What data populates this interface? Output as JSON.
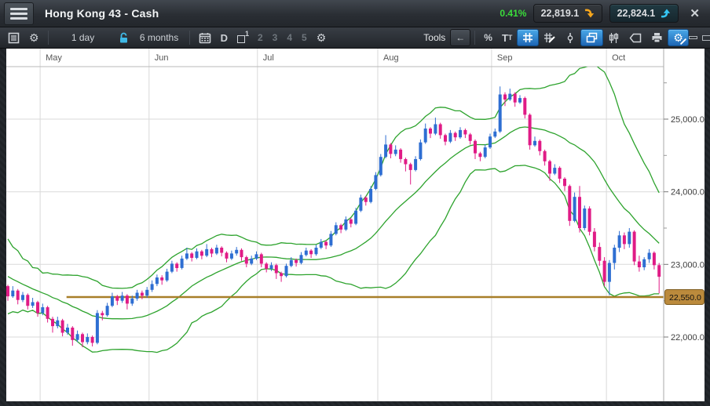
{
  "header": {
    "title": "Hong Kong 43 - Cash",
    "change_pct": "0.41%",
    "change_color": "#3bdc3b",
    "sell_price": "22,819.1",
    "buy_price": "22,824.1",
    "close_label": "✕"
  },
  "toolbar": {
    "period": "1 day",
    "range": "6 months",
    "chart_type": "D",
    "pane_current": "1",
    "pane_numbers": [
      "2",
      "3",
      "4",
      "5"
    ],
    "tools_label": "Tools",
    "back_arrow": "←",
    "percent_label": "%",
    "text_tool_big": "T",
    "text_tool_small": "T",
    "gear_glyph": "⚙"
  },
  "icons": [
    "hamburger-menu",
    "news-list",
    "gear",
    "lock",
    "calendar",
    "panes",
    "tools-back-arrow",
    "percent",
    "text-tool",
    "grid",
    "grid-draw",
    "drop-line",
    "overlap-windows",
    "candlestick-tool",
    "callout",
    "printer",
    "gear-draw",
    "size-small",
    "size-medium",
    "size-large",
    "chat-bubble",
    "sell-arrow-down",
    "buy-arrow-up",
    "close"
  ],
  "colors": {
    "up_candle": "#2e6ed2",
    "down_candle": "#e01b86",
    "band_green": "#2da32d",
    "support_gold": "#a87e28",
    "active_tool_blue": "#2b7fd0",
    "pct_green": "#3bdc3b",
    "sell_arrow_orange": "#f6a61d",
    "buy_arrow_cyan": "#35c6f4"
  },
  "chart_data": {
    "type": "candlestick",
    "title": "Hong Kong 43 - Cash, daily, 6 months, with Bollinger Bands (20, 2)",
    "x_axis": {
      "months": [
        {
          "label": "May",
          "day": 6.5
        },
        {
          "label": "Jun",
          "day": 28.4
        },
        {
          "label": "Jul",
          "day": 50.2
        },
        {
          "label": "Aug",
          "day": 74.4
        },
        {
          "label": "Sep",
          "day": 97.3
        },
        {
          "label": "Oct",
          "day": 120.4
        }
      ]
    },
    "y_axis": {
      "major_ticks": [
        25000,
        24000,
        23000,
        22000
      ],
      "major_tick_labels": [
        "25,000.0",
        "24,000.0",
        "23,000.0",
        "22,000.0"
      ],
      "minor_ticks": [
        25500,
        24500,
        23500,
        22500
      ],
      "ylim": [
        21115,
        25720
      ]
    },
    "support_line": {
      "price": 22550,
      "label": "22,550.0",
      "start_day": 11.8
    },
    "bollinger": {
      "window": 20,
      "mult": 2,
      "lead_in_closes": [
        23310,
        23420,
        23180,
        23300,
        23020,
        23150,
        22870,
        23010,
        22760,
        22900,
        22680,
        22820,
        22600,
        22740,
        22560,
        22690,
        22540,
        22650,
        22560,
        22680
      ]
    },
    "candles": [
      [
        22700,
        22720,
        22500,
        22560
      ],
      [
        22560,
        22700,
        22540,
        22640
      ],
      [
        22640,
        22660,
        22450,
        22510
      ],
      [
        22510,
        22620,
        22480,
        22580
      ],
      [
        22580,
        22600,
        22380,
        22430
      ],
      [
        22430,
        22540,
        22400,
        22480
      ],
      [
        22480,
        22500,
        22280,
        22330
      ],
      [
        22330,
        22460,
        22300,
        22410
      ],
      [
        22410,
        22430,
        22200,
        22250
      ],
      [
        22250,
        22280,
        22060,
        22150
      ],
      [
        22150,
        22280,
        22120,
        22230
      ],
      [
        22230,
        22250,
        22010,
        22060
      ],
      [
        22060,
        22180,
        22030,
        22130
      ],
      [
        22130,
        22150,
        21880,
        21960
      ],
      [
        21960,
        22090,
        21930,
        22040
      ],
      [
        22040,
        22060,
        21860,
        21930
      ],
      [
        21930,
        22050,
        21900,
        22000
      ],
      [
        22000,
        22020,
        21870,
        21920
      ],
      [
        21920,
        22370,
        21900,
        22330
      ],
      [
        22330,
        22360,
        22230,
        22300
      ],
      [
        22300,
        22470,
        22280,
        22430
      ],
      [
        22430,
        22610,
        22410,
        22560
      ],
      [
        22560,
        22580,
        22440,
        22500
      ],
      [
        22500,
        22620,
        22470,
        22570
      ],
      [
        22570,
        22590,
        22380,
        22460
      ],
      [
        22460,
        22570,
        22430,
        22530
      ],
      [
        22530,
        22650,
        22500,
        22610
      ],
      [
        22610,
        22640,
        22520,
        22570
      ],
      [
        22570,
        22690,
        22540,
        22650
      ],
      [
        22650,
        22780,
        22620,
        22730
      ],
      [
        22730,
        22860,
        22700,
        22820
      ],
      [
        22820,
        22850,
        22720,
        22780
      ],
      [
        22780,
        22940,
        22760,
        22900
      ],
      [
        22900,
        23050,
        22880,
        23010
      ],
      [
        23010,
        23030,
        22900,
        22950
      ],
      [
        22950,
        23120,
        22930,
        23080
      ],
      [
        23080,
        23230,
        23060,
        23150
      ],
      [
        23150,
        23170,
        23040,
        23090
      ],
      [
        23090,
        23220,
        23070,
        23180
      ],
      [
        23180,
        23200,
        23070,
        23120
      ],
      [
        23120,
        23280,
        23100,
        23210
      ],
      [
        23210,
        23230,
        23100,
        23150
      ],
      [
        23150,
        23270,
        23130,
        23230
      ],
      [
        23230,
        23250,
        23110,
        23160
      ],
      [
        23160,
        23180,
        23030,
        23080
      ],
      [
        23080,
        23190,
        23060,
        23150
      ],
      [
        23150,
        23240,
        23120,
        23200
      ],
      [
        23200,
        23220,
        23050,
        23100
      ],
      [
        23100,
        23120,
        22960,
        23010
      ],
      [
        23010,
        23120,
        22990,
        23080
      ],
      [
        23080,
        23180,
        23060,
        23140
      ],
      [
        23140,
        23160,
        22960,
        23010
      ],
      [
        23010,
        23030,
        22890,
        22940
      ],
      [
        22940,
        23030,
        22910,
        22990
      ],
      [
        22990,
        23010,
        22800,
        22880
      ],
      [
        22880,
        22900,
        22760,
        22840
      ],
      [
        22840,
        23010,
        22820,
        22980
      ],
      [
        22980,
        23100,
        22960,
        23060
      ],
      [
        23060,
        23080,
        22970,
        23020
      ],
      [
        23020,
        23170,
        23000,
        23130
      ],
      [
        23130,
        23230,
        23110,
        23190
      ],
      [
        23190,
        23210,
        23090,
        23140
      ],
      [
        23140,
        23270,
        23120,
        23230
      ],
      [
        23230,
        23350,
        23210,
        23310
      ],
      [
        23310,
        23330,
        23210,
        23260
      ],
      [
        23260,
        23460,
        23240,
        23420
      ],
      [
        23420,
        23580,
        23400,
        23540
      ],
      [
        23540,
        23560,
        23430,
        23480
      ],
      [
        23480,
        23660,
        23460,
        23620
      ],
      [
        23620,
        23640,
        23510,
        23560
      ],
      [
        23560,
        23780,
        23540,
        23740
      ],
      [
        23740,
        23960,
        23720,
        23920
      ],
      [
        23920,
        23940,
        23810,
        23860
      ],
      [
        23860,
        24080,
        23840,
        24040
      ],
      [
        24040,
        24270,
        24020,
        24230
      ],
      [
        24230,
        24520,
        24210,
        24480
      ],
      [
        24480,
        24780,
        24460,
        24650
      ],
      [
        24650,
        24670,
        24460,
        24520
      ],
      [
        24520,
        24640,
        24490,
        24580
      ],
      [
        24580,
        24600,
        24400,
        24450
      ],
      [
        24450,
        24470,
        24280,
        24380
      ],
      [
        24380,
        24400,
        24100,
        24300
      ],
      [
        24300,
        24490,
        24280,
        24450
      ],
      [
        24450,
        24720,
        24430,
        24680
      ],
      [
        24680,
        24940,
        24660,
        24870
      ],
      [
        24870,
        24890,
        24740,
        24800
      ],
      [
        24800,
        25020,
        24780,
        24930
      ],
      [
        24930,
        24950,
        24730,
        24780
      ],
      [
        24780,
        24800,
        24640,
        24690
      ],
      [
        24690,
        24850,
        24670,
        24810
      ],
      [
        24810,
        24830,
        24700,
        24750
      ],
      [
        24750,
        24890,
        24730,
        24850
      ],
      [
        24850,
        24870,
        24740,
        24790
      ],
      [
        24790,
        24810,
        24650,
        24700
      ],
      [
        24700,
        24720,
        24450,
        24530
      ],
      [
        24530,
        24550,
        24420,
        24480
      ],
      [
        24480,
        24650,
        24460,
        24610
      ],
      [
        24610,
        24800,
        24590,
        24760
      ],
      [
        24760,
        24870,
        24740,
        24830
      ],
      [
        24830,
        25450,
        24810,
        25340
      ],
      [
        25340,
        25370,
        25180,
        25270
      ],
      [
        25270,
        25420,
        25250,
        25350
      ],
      [
        25350,
        25370,
        25170,
        25230
      ],
      [
        25230,
        25330,
        25210,
        25290
      ],
      [
        25290,
        25310,
        25010,
        25060
      ],
      [
        25060,
        25080,
        24580,
        24640
      ],
      [
        24640,
        24760,
        24620,
        24700
      ],
      [
        24700,
        24720,
        24500,
        24560
      ],
      [
        24560,
        24580,
        24360,
        24420
      ],
      [
        24420,
        24440,
        24150,
        24250
      ],
      [
        24250,
        24380,
        24230,
        24330
      ],
      [
        24330,
        24350,
        24120,
        24180
      ],
      [
        24180,
        24200,
        24010,
        24080
      ],
      [
        24080,
        24100,
        23530,
        23600
      ],
      [
        23600,
        23990,
        23580,
        23930
      ],
      [
        23930,
        24080,
        23440,
        23500
      ],
      [
        23500,
        23810,
        23470,
        23770
      ],
      [
        23770,
        23800,
        23400,
        23450
      ],
      [
        23450,
        23500,
        23180,
        23240
      ],
      [
        23240,
        23300,
        22980,
        23050
      ],
      [
        23050,
        23100,
        22700,
        22760
      ],
      [
        22760,
        23060,
        22575,
        23020
      ],
      [
        23020,
        23270,
        22930,
        23230
      ],
      [
        23230,
        23460,
        23170,
        23400
      ],
      [
        23400,
        23440,
        23210,
        23280
      ],
      [
        23280,
        23500,
        23230,
        23450
      ],
      [
        23450,
        23470,
        22990,
        23040
      ],
      [
        23040,
        23120,
        22900,
        22960
      ],
      [
        22960,
        23100,
        22920,
        23070
      ],
      [
        23070,
        23210,
        23020,
        23160
      ],
      [
        23160,
        23180,
        22930,
        22990
      ],
      [
        22990,
        23020,
        22600,
        22830
      ]
    ]
  }
}
